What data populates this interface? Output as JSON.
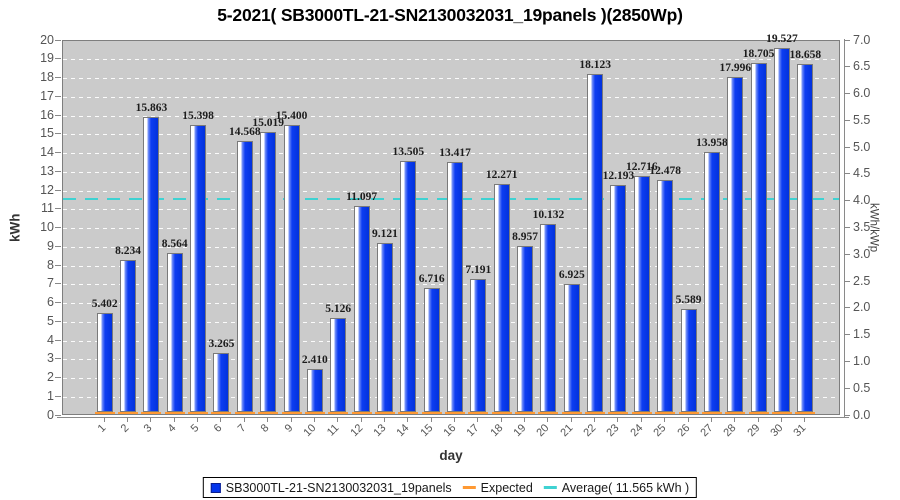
{
  "chart_data": {
    "type": "bar",
    "title": "5-2021( SB3000TL-21-SN2130032031_19panels )(2850Wp)",
    "xlabel": "day",
    "ylabel_left": "kWh",
    "ylabel_right": "kWh/kWp",
    "ylim_left": [
      0,
      20
    ],
    "ytick_step_left": 1,
    "ylim_right": [
      0.0,
      7.0
    ],
    "ytick_step_right": 0.5,
    "grid": "horizontal-white-dashed",
    "legend_position": "bottom",
    "categories": [
      "1",
      "2",
      "3",
      "4",
      "5",
      "6",
      "7",
      "8",
      "9",
      "10",
      "11",
      "12",
      "13",
      "14",
      "15",
      "16",
      "17",
      "18",
      "19",
      "20",
      "21",
      "22",
      "23",
      "24",
      "25",
      "26",
      "27",
      "28",
      "29",
      "30",
      "31"
    ],
    "series": [
      {
        "name": "SB3000TL-21-SN2130032031_19panels",
        "values": [
          5.402,
          8.234,
          15.863,
          8.564,
          15.398,
          3.265,
          14.568,
          15.019,
          15.4,
          2.41,
          5.126,
          11.097,
          9.121,
          13.505,
          6.716,
          13.417,
          7.191,
          12.271,
          8.957,
          10.132,
          6.925,
          18.123,
          12.193,
          12.716,
          12.478,
          5.589,
          13.958,
          17.996,
          18.705,
          19.527,
          18.658
        ]
      }
    ],
    "expected": {
      "label": "Expected",
      "baseline_value": 0
    },
    "average": {
      "label": "Average( 11.565 kWh )",
      "value": 11.565
    }
  },
  "colors": {
    "bar": "#0435ec",
    "bar_border": "#7a7a7a",
    "expected": "#ff9933",
    "average": "#3fd2d2",
    "plot_background": "#cbcbcb",
    "gridline": "#ffffff",
    "tick_text": "#555555",
    "legend_border": "#000000"
  }
}
